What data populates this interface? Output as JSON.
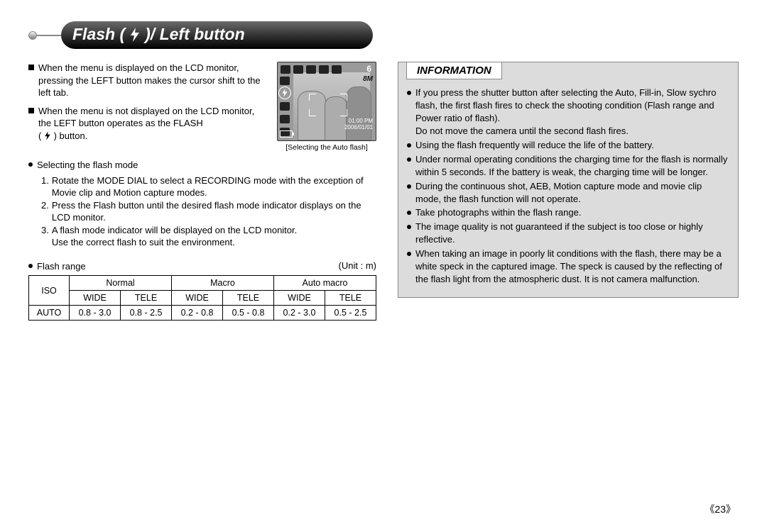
{
  "header": {
    "title_prefix": "Flash (",
    "title_suffix": ")/ Left button"
  },
  "left": {
    "para1": "When the menu is displayed on the LCD monitor, pressing the LEFT button makes the cursor shift to the left tab.",
    "para2_a": "When the menu is not displayed on the LCD monitor, the LEFT button operates as the FLASH",
    "para2_b": "(",
    "para2_c": ") button.",
    "lcd_caption": "[Selecting the Auto flash]",
    "lcd_six": "6",
    "lcd_8m": "8M",
    "lcd_time1": "01:00 PM",
    "lcd_time2": "2006/01/01",
    "select_heading": "Selecting the flash mode",
    "step1": "Rotate the MODE DIAL to select a RECORDING mode with the exception of Movie clip and Motion capture modes.",
    "step2": "Press the Flash button until the desired flash mode indicator displays on the LCD monitor.",
    "step3a": "A flash mode indicator will be displayed on the LCD monitor.",
    "step3b": "Use the correct flash to suit the environment.",
    "range_label": "Flash range",
    "unit_label": "(Unit : m)",
    "table": {
      "iso": "ISO",
      "cols": [
        "Normal",
        "Macro",
        "Auto macro"
      ],
      "sub": [
        "WIDE",
        "TELE",
        "WIDE",
        "TELE",
        "WIDE",
        "TELE"
      ],
      "row_label": "AUTO",
      "row": [
        "0.8 - 3.0",
        "0.8 - 2.5",
        "0.2 - 0.8",
        "0.5 - 0.8",
        "0.2 - 3.0",
        "0.5 - 2.5"
      ]
    }
  },
  "info": {
    "title": "INFORMATION",
    "items": [
      "If you press the shutter button after selecting the Auto, Fill-in, Slow sychro flash, the first flash fires to check the shooting condition (Flash range and Power ratio of flash).\nDo not move the camera until the second flash fires.",
      "Using the flash frequently will reduce the life of the battery.",
      "Under normal operating conditions the charging time for the flash is normally within 5 seconds. If the battery is weak, the charging time will be longer.",
      "During the continuous shot, AEB, Motion capture mode and movie clip mode, the flash function will not operate.",
      "Take photographs within the flash range.",
      "The image quality is not guaranteed if the subject is too close or highly reflective.",
      "When taking an image in poorly lit conditions with the flash, there may be a white speck in the captured image. The speck is caused by the reflecting of the flash light from the atmospheric dust. It is not camera malfunction."
    ]
  },
  "page_number": "《23》",
  "colors": {
    "info_bg": "#dcdcdc",
    "info_border": "#888888",
    "text": "#000000"
  }
}
